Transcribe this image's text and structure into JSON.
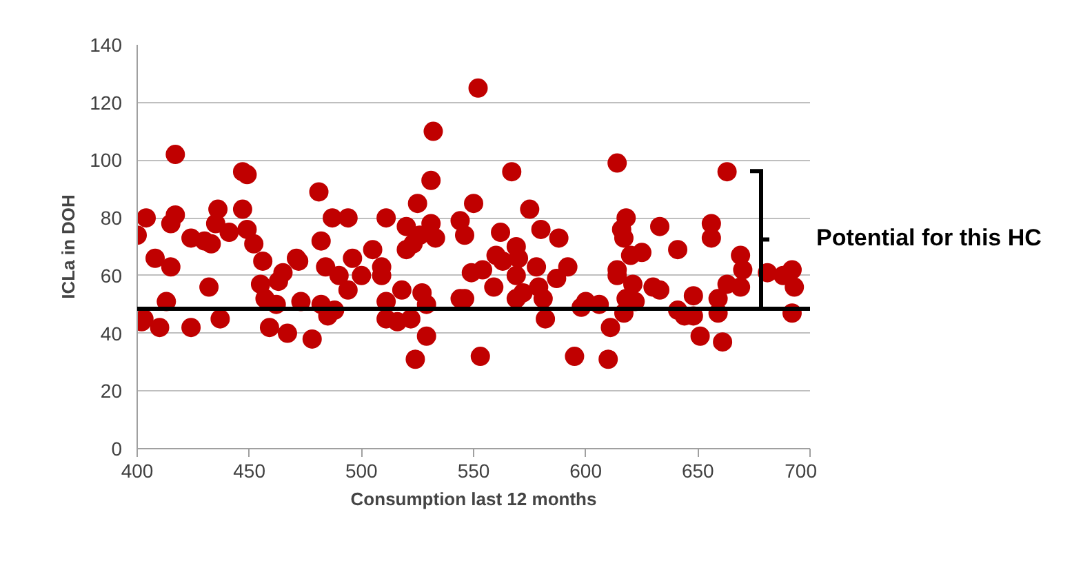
{
  "chart_data": {
    "type": "scatter",
    "xlabel": "Consumption last 12 months",
    "ylabel": "ICLa in DOH",
    "xlim": [
      400,
      700
    ],
    "xticks": [
      400,
      450,
      500,
      550,
      600,
      650,
      700
    ],
    "ylim": [
      0,
      140
    ],
    "yticks": [
      0,
      20,
      40,
      60,
      80,
      100,
      120,
      140
    ],
    "grid": "y",
    "marker": "circle",
    "series": [
      {
        "color": "#c00000",
        "x": [
          400,
          404,
          402,
          403,
          408,
          410,
          413,
          415,
          415,
          417,
          417,
          424,
          424,
          430,
          433,
          432,
          436,
          435,
          437,
          441,
          447,
          447,
          449,
          449,
          452,
          456,
          455,
          457,
          459,
          462,
          463,
          465,
          467,
          471,
          472,
          473,
          478,
          481,
          482,
          482,
          485,
          488,
          484,
          487,
          490,
          494,
          496,
          494,
          500,
          505,
          509,
          509,
          511,
          511,
          511,
          516,
          518,
          520,
          520,
          522,
          524,
          523,
          525,
          526,
          527,
          529,
          529,
          531,
          531,
          532,
          533,
          544,
          546,
          544,
          546,
          550,
          552,
          549,
          554,
          553,
          559,
          560,
          563,
          562,
          567,
          569,
          570,
          569,
          569,
          572,
          575,
          578,
          579,
          581,
          580,
          582,
          587,
          588,
          592,
          595,
          598,
          600,
          606,
          611,
          610,
          614,
          614,
          614,
          616,
          618,
          617,
          621,
          620,
          625,
          618,
          617,
          622,
          630,
          633,
          633,
          641,
          641,
          644,
          648,
          648,
          651,
          656,
          656,
          659,
          659,
          661,
          663,
          663,
          669,
          670,
          669,
          681,
          688,
          692,
          693,
          692
        ],
        "values": [
          74,
          80,
          44,
          45,
          66,
          42,
          51,
          63,
          78,
          81,
          102,
          73,
          42,
          72,
          71,
          56,
          83,
          78,
          45,
          75,
          83,
          96,
          95,
          76,
          71,
          65,
          57,
          52,
          42,
          50,
          58,
          61,
          40,
          66,
          65,
          51,
          38,
          89,
          72,
          50,
          46,
          48,
          63,
          80,
          60,
          80,
          66,
          55,
          60,
          69,
          63,
          60,
          51,
          45,
          80,
          44,
          55,
          77,
          69,
          45,
          31,
          71,
          85,
          74,
          54,
          50,
          39,
          78,
          93,
          110,
          73,
          79,
          74,
          52,
          52,
          85,
          125,
          61,
          62,
          32,
          56,
          67,
          65,
          75,
          96,
          70,
          66,
          60,
          52,
          54,
          83,
          63,
          56,
          52,
          76,
          45,
          59,
          73,
          63,
          32,
          49,
          51,
          50,
          42,
          31,
          99,
          60,
          62,
          76,
          80,
          73,
          57,
          67,
          68,
          52,
          47,
          51,
          56,
          55,
          77,
          69,
          48,
          46,
          46,
          53,
          39,
          78,
          73,
          52,
          47,
          37,
          96,
          57,
          67,
          62,
          56,
          61,
          60,
          62,
          56,
          47
        ]
      }
    ],
    "ref_lines": [
      {
        "axis": "y",
        "value": 48.5,
        "color": "#000000"
      }
    ],
    "annotations": [
      "Potential for this HC"
    ]
  }
}
